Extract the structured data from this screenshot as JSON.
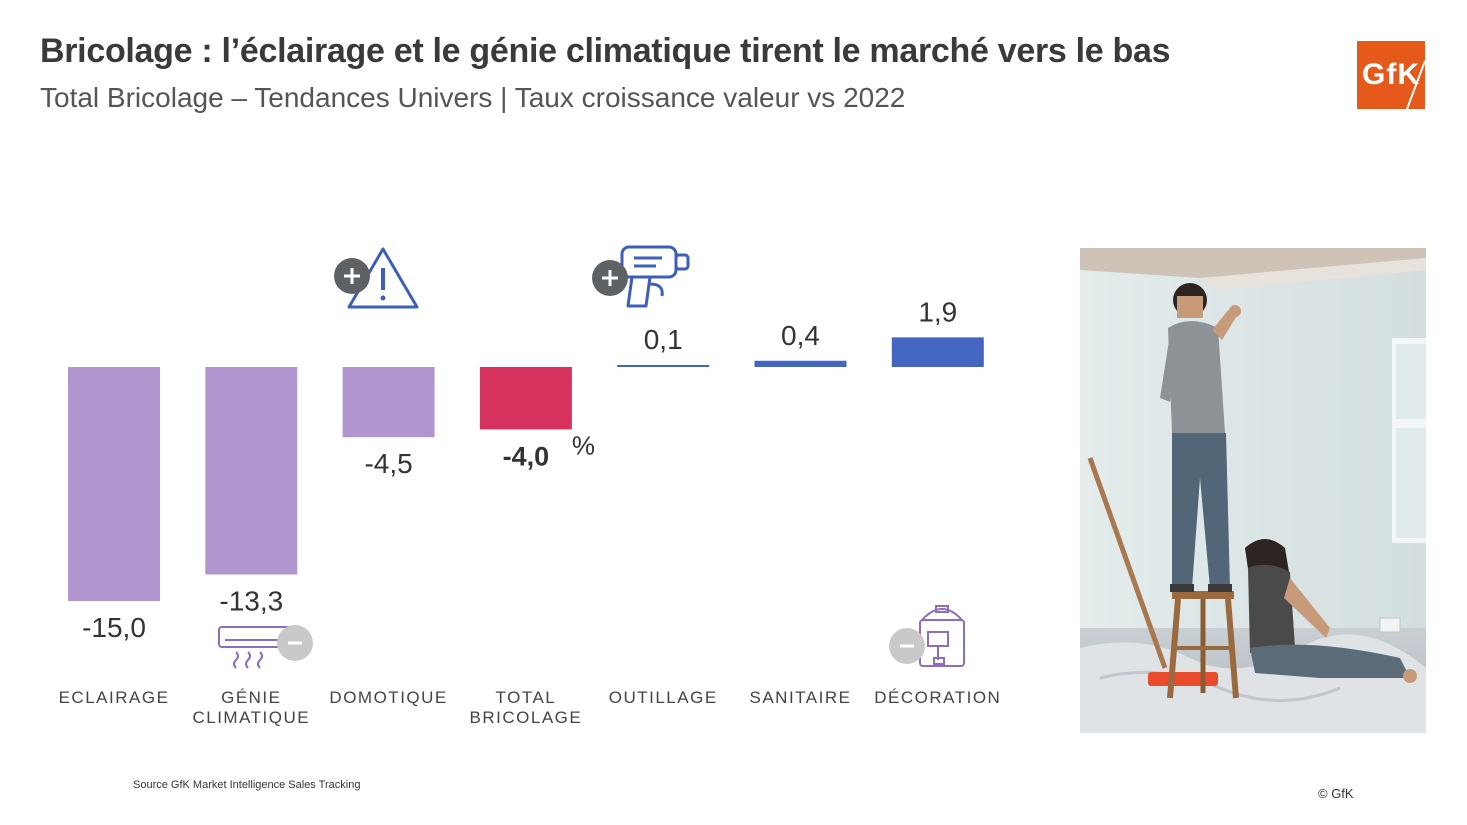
{
  "header": {
    "title": "Bricolage : l’éclairage et le génie climatique tirent le marché vers le bas",
    "subtitle": "Total Bricolage – Tendances Univers | Taux croissance valeur vs 2022"
  },
  "logo": {
    "text": "GfK",
    "color": "#e55a1a"
  },
  "chart_data": {
    "type": "bar",
    "categories": [
      "ECLAIRAGE",
      "GÉNIE CLIMATIQUE",
      "DOMOTIQUE",
      "TOTAL BRICOLAGE",
      "OUTILLAGE",
      "SANITAIRE",
      "DÉCORATION"
    ],
    "category_lines": [
      [
        "ECLAIRAGE"
      ],
      [
        "GÉNIE",
        "CLIMATIQUE"
      ],
      [
        "DOMOTIQUE"
      ],
      [
        "TOTAL",
        "BRICOLAGE"
      ],
      [
        "OUTILLAGE"
      ],
      [
        "SANITAIRE"
      ],
      [
        "DÉCORATION"
      ]
    ],
    "values": [
      -15.0,
      -13.3,
      -4.5,
      -4.0,
      0.1,
      0.4,
      1.9
    ],
    "value_labels": [
      "-15,0",
      "-13,3",
      "-4,5",
      "-4,0",
      "0,1",
      "0,4",
      "1,9"
    ],
    "unit_label": "%",
    "colors": [
      "#b195cf",
      "#b195cf",
      "#b195cf",
      "#d6325e",
      "#4466c0",
      "#4466c0",
      "#4466c0"
    ],
    "highlight_index": 3
  },
  "icons": [
    {
      "name": "warning-plus-icon",
      "category": "DOMOTIQUE",
      "badge": "+"
    },
    {
      "name": "paint-gun-plus-icon",
      "category": "OUTILLAGE",
      "badge": "+"
    },
    {
      "name": "air-conditioner-minus-icon",
      "category": "GÉNIE CLIMATIQUE",
      "badge": "-"
    },
    {
      "name": "paint-bucket-minus-icon",
      "category": "DÉCORATION",
      "badge": "-"
    }
  ],
  "footer": {
    "source": "Source GfK Market Intelligence Sales Tracking",
    "copyright": "© GfK"
  }
}
